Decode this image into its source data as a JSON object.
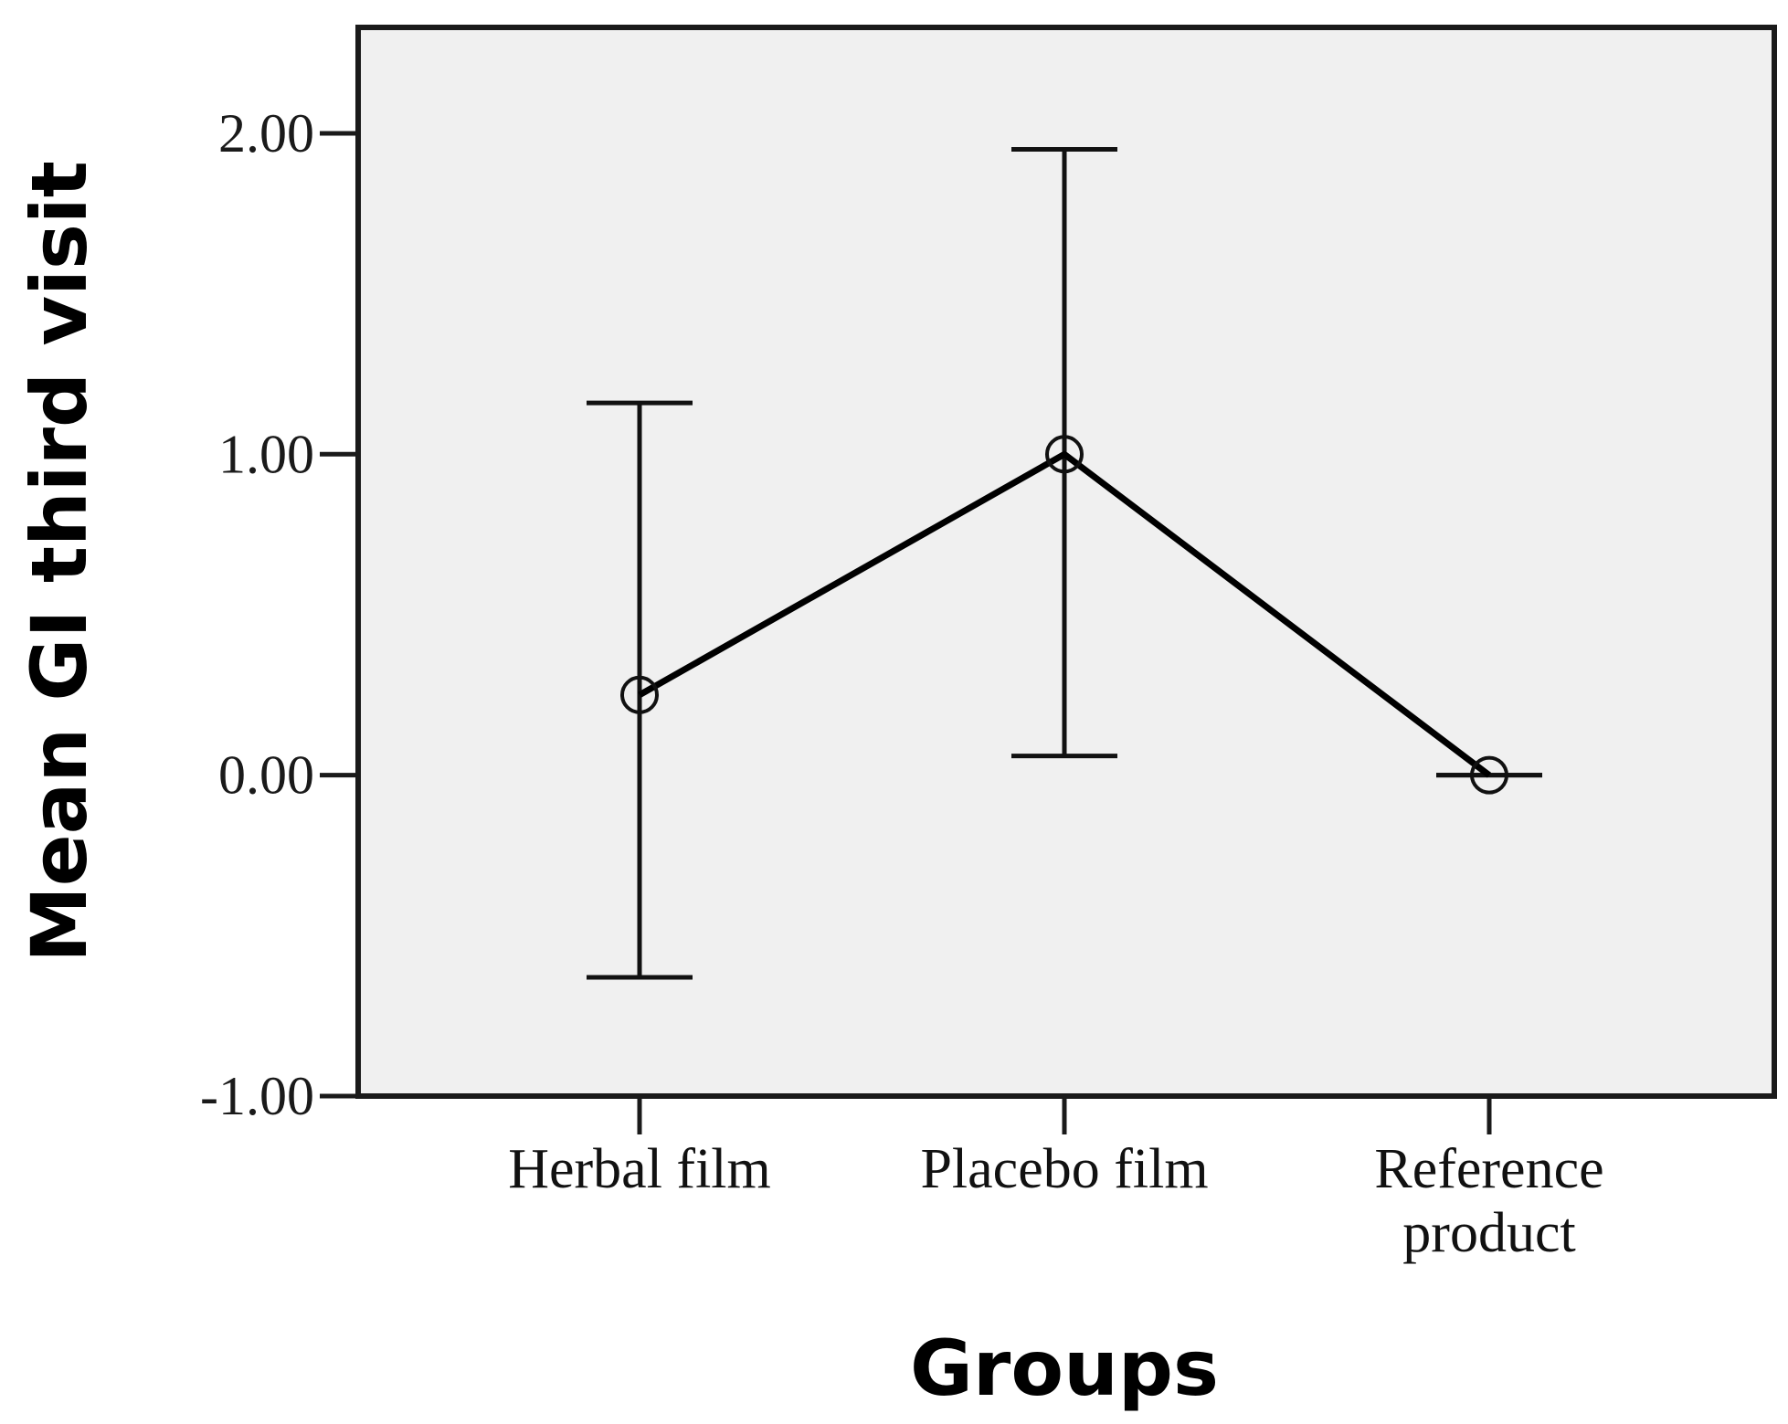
{
  "chart_data": {
    "type": "line",
    "xlabel": "Groups",
    "ylabel": "Mean GI third visit",
    "categories": [
      [
        "Herbal film"
      ],
      [
        "Placebo film"
      ],
      [
        "Reference",
        "product"
      ]
    ],
    "series": [
      {
        "values": [
          0.25,
          1.0,
          0.0
        ],
        "error_low": [
          -0.63,
          0.06,
          0.0
        ],
        "error_high": [
          1.16,
          1.95,
          0.0
        ]
      }
    ],
    "ylim": [
      -1.0,
      2.33
    ],
    "yticks": [
      -1.0,
      0.0,
      1.0,
      2.0
    ],
    "ytick_labels": [
      "-1.00",
      "0.00",
      "1.00",
      "2.00"
    ],
    "grid": false,
    "colors": {
      "plot_background": "#f0f0f0",
      "line": "#000000",
      "tick_label": "#1a1a1a"
    }
  }
}
